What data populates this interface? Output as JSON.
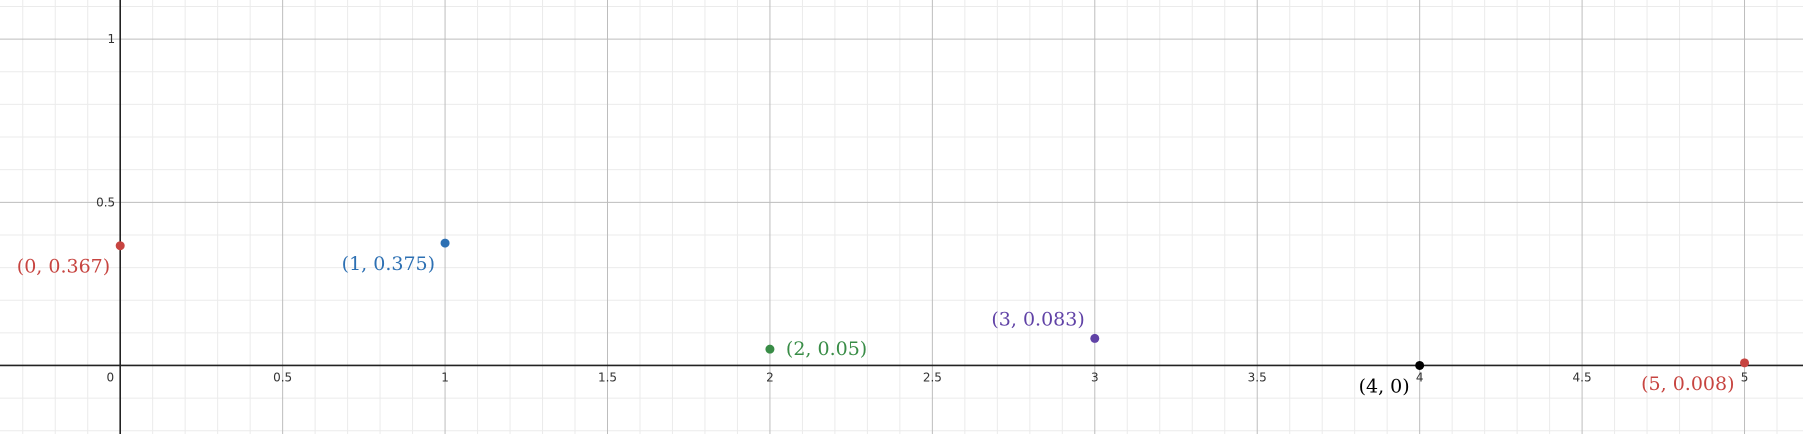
{
  "chart_data": {
    "type": "scatter",
    "title": "",
    "xlabel": "",
    "ylabel": "",
    "xlim": [
      -0.37,
      5.18
    ],
    "ylim": [
      -0.21,
      1.12
    ],
    "grid": true,
    "x_ticks": [
      {
        "value": 0.5,
        "label": "0.5"
      },
      {
        "value": 1,
        "label": "1"
      },
      {
        "value": 1.5,
        "label": "1.5"
      },
      {
        "value": 2,
        "label": "2"
      },
      {
        "value": 2.5,
        "label": "2.5"
      },
      {
        "value": 3,
        "label": "3"
      },
      {
        "value": 3.5,
        "label": "3.5"
      },
      {
        "value": 4,
        "label": "4"
      },
      {
        "value": 4.5,
        "label": "4.5"
      },
      {
        "value": 5,
        "label": "5"
      }
    ],
    "y_ticks": [
      {
        "value": 0.5,
        "label": "0.5"
      },
      {
        "value": 1,
        "label": "1"
      }
    ],
    "origin_label": "0",
    "points": [
      {
        "x": 0,
        "y": 0.367,
        "label": "(0, 0.367)",
        "color": "#c74440",
        "label_side": "below-left"
      },
      {
        "x": 1,
        "y": 0.375,
        "label": "(1, 0.375)",
        "color": "#2d70b3",
        "label_side": "below-left"
      },
      {
        "x": 2,
        "y": 0.05,
        "label": "(2, 0.05)",
        "color": "#388c46",
        "label_side": "right"
      },
      {
        "x": 3,
        "y": 0.083,
        "label": "(3, 0.083)",
        "color": "#6042a6",
        "label_side": "above-left"
      },
      {
        "x": 4,
        "y": 0,
        "label": "(4, 0)",
        "color": "#000000",
        "label_side": "below-left"
      },
      {
        "x": 5,
        "y": 0.008,
        "label": "(5, 0.008)",
        "color": "#c74440",
        "label_side": "below-left"
      }
    ]
  }
}
